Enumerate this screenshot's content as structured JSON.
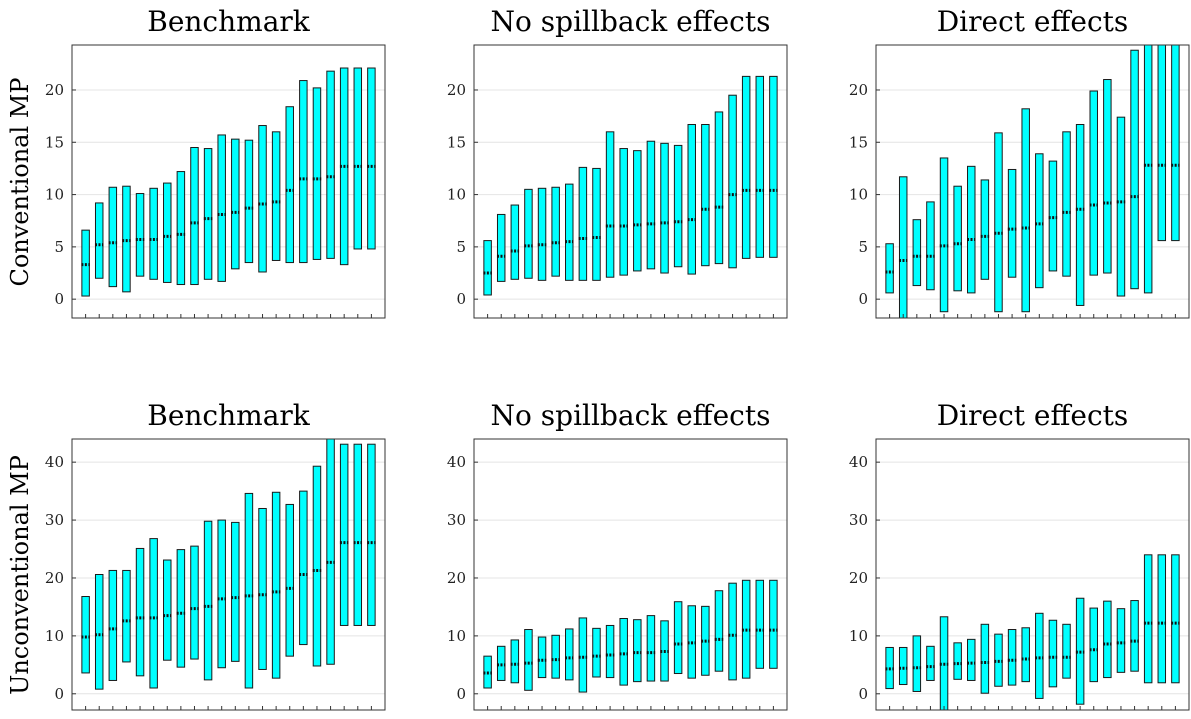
{
  "colors": {
    "bar_fill": "#00ffff",
    "bar_edge": "#1a1a1a",
    "median": "#111111",
    "grid": "#e4e4e4"
  },
  "row_labels": [
    "Conventional MP",
    "Unconventional MP"
  ],
  "chart_data": [
    {
      "type": "range-bar",
      "title": "Benchmark",
      "ylim": [
        -1.8,
        24.3
      ],
      "yticks": [
        0,
        5,
        10,
        15,
        20
      ],
      "grid": true,
      "x": [
        1,
        2,
        3,
        4,
        5,
        6,
        7,
        8,
        9,
        10,
        11,
        12,
        13,
        14,
        15,
        16,
        17,
        18,
        19,
        20,
        21,
        22
      ],
      "low": [
        0.3,
        2.0,
        1.2,
        0.7,
        2.2,
        1.9,
        1.6,
        1.4,
        1.4,
        1.9,
        1.7,
        2.9,
        3.5,
        2.6,
        3.7,
        3.5,
        3.5,
        3.8,
        3.9,
        3.3,
        4.8,
        4.8
      ],
      "high": [
        6.6,
        9.2,
        10.7,
        10.8,
        10.1,
        10.6,
        11.1,
        12.2,
        14.5,
        14.4,
        15.7,
        15.3,
        15.2,
        16.6,
        16.0,
        18.4,
        20.9,
        20.2,
        21.8,
        22.1,
        22.1,
        22.1
      ],
      "median": [
        3.3,
        5.2,
        5.4,
        5.6,
        5.7,
        5.7,
        6.0,
        6.2,
        7.3,
        7.7,
        8.1,
        8.3,
        8.7,
        9.1,
        9.3,
        10.4,
        11.5,
        11.5,
        11.7,
        12.7,
        12.7,
        12.7
      ]
    },
    {
      "type": "range-bar",
      "title": "No spillback effects",
      "ylim": [
        -1.8,
        24.3
      ],
      "yticks": [
        0,
        5,
        10,
        15,
        20
      ],
      "grid": true,
      "x": [
        1,
        2,
        3,
        4,
        5,
        6,
        7,
        8,
        9,
        10,
        11,
        12,
        13,
        14,
        15,
        16,
        17,
        18,
        19,
        20,
        21,
        22
      ],
      "low": [
        0.4,
        1.7,
        1.9,
        2.0,
        1.8,
        2.2,
        1.8,
        1.8,
        1.8,
        2.1,
        2.3,
        2.7,
        2.9,
        2.5,
        3.1,
        2.4,
        3.2,
        3.4,
        3.0,
        3.9,
        4.0,
        4.0
      ],
      "high": [
        5.6,
        8.1,
        9.0,
        10.5,
        10.6,
        10.7,
        11.0,
        12.6,
        12.5,
        16.0,
        14.4,
        14.2,
        15.1,
        14.9,
        14.7,
        16.7,
        16.7,
        17.9,
        19.5,
        21.3,
        21.3,
        21.3
      ],
      "median": [
        2.5,
        4.1,
        4.6,
        5.1,
        5.2,
        5.4,
        5.5,
        5.8,
        5.9,
        7.0,
        7.0,
        7.1,
        7.2,
        7.3,
        7.4,
        7.6,
        8.6,
        8.8,
        10.0,
        10.4,
        10.4,
        10.4
      ]
    },
    {
      "type": "range-bar",
      "title": "Direct effects",
      "ylim": [
        -1.8,
        24.3
      ],
      "yticks": [
        0,
        5,
        10,
        15,
        20
      ],
      "grid": true,
      "x": [
        1,
        2,
        3,
        4,
        5,
        6,
        7,
        8,
        9,
        10,
        11,
        12,
        13,
        14,
        15,
        16,
        17,
        18,
        19,
        20,
        21,
        22
      ],
      "low": [
        0.6,
        -2.0,
        1.3,
        0.9,
        -1.2,
        0.8,
        0.6,
        1.9,
        -1.2,
        2.1,
        -1.2,
        1.1,
        2.7,
        2.2,
        -0.6,
        2.3,
        2.5,
        0.3,
        1.0,
        0.6,
        5.6,
        5.6
      ],
      "high": [
        5.3,
        11.7,
        7.6,
        9.3,
        13.5,
        10.8,
        12.7,
        11.4,
        15.9,
        12.4,
        18.2,
        13.9,
        13.2,
        16.0,
        16.7,
        19.9,
        21.0,
        17.4,
        23.8,
        24.3,
        24.3,
        24.3
      ],
      "median": [
        2.6,
        3.7,
        4.1,
        4.1,
        5.1,
        5.3,
        5.7,
        6.0,
        6.3,
        6.7,
        6.8,
        7.2,
        7.8,
        8.3,
        8.6,
        9.0,
        9.2,
        9.3,
        9.8,
        12.8,
        12.8,
        12.8
      ]
    },
    {
      "type": "range-bar",
      "title": "Benchmark",
      "ylim": [
        -2.8,
        44.0
      ],
      "yticks": [
        0,
        10,
        20,
        30,
        40
      ],
      "grid": true,
      "x": [
        1,
        2,
        3,
        4,
        5,
        6,
        7,
        8,
        9,
        10,
        11,
        12,
        13,
        14,
        15,
        16,
        17,
        18,
        19,
        20,
        21,
        22
      ],
      "low": [
        3.6,
        0.8,
        2.3,
        5.5,
        3.1,
        1.0,
        5.8,
        4.6,
        6.0,
        2.4,
        4.5,
        5.6,
        1.0,
        4.2,
        2.7,
        6.5,
        8.5,
        4.8,
        5.1,
        11.8,
        11.8,
        11.8
      ],
      "high": [
        16.8,
        20.6,
        21.3,
        21.3,
        25.1,
        26.8,
        23.1,
        24.9,
        25.5,
        29.8,
        30.0,
        29.6,
        34.6,
        32.0,
        34.8,
        32.7,
        35.0,
        39.3,
        44.0,
        43.1,
        43.1,
        43.1
      ],
      "median": [
        9.8,
        10.2,
        11.2,
        12.6,
        13.1,
        13.1,
        13.5,
        13.9,
        14.7,
        15.1,
        16.4,
        16.6,
        16.9,
        17.1,
        17.6,
        18.2,
        20.6,
        21.3,
        22.7,
        26.1,
        26.1,
        26.1
      ]
    },
    {
      "type": "range-bar",
      "title": "No spillback effects",
      "ylim": [
        -2.8,
        44.0
      ],
      "yticks": [
        0,
        10,
        20,
        30,
        40
      ],
      "grid": true,
      "x": [
        1,
        2,
        3,
        4,
        5,
        6,
        7,
        8,
        9,
        10,
        11,
        12,
        13,
        14,
        15,
        16,
        17,
        18,
        19,
        20,
        21,
        22
      ],
      "low": [
        1.0,
        2.3,
        1.9,
        0.6,
        2.8,
        2.7,
        2.4,
        0.3,
        2.9,
        2.8,
        1.5,
        2.1,
        2.2,
        2.2,
        3.5,
        2.7,
        3.2,
        3.9,
        2.4,
        2.7,
        4.4,
        4.4
      ],
      "high": [
        6.5,
        8.2,
        9.3,
        11.1,
        9.8,
        10.1,
        11.2,
        13.1,
        11.3,
        11.8,
        13.0,
        12.8,
        13.5,
        12.6,
        15.9,
        15.2,
        15.1,
        17.8,
        19.1,
        19.6,
        19.6,
        19.6
      ],
      "median": [
        3.6,
        5.0,
        5.1,
        5.3,
        5.8,
        5.9,
        6.2,
        6.3,
        6.5,
        6.7,
        6.9,
        7.1,
        7.1,
        7.3,
        8.6,
        8.8,
        9.1,
        9.4,
        10.1,
        11.0,
        11.0,
        11.0
      ]
    },
    {
      "type": "range-bar",
      "title": "Direct effects",
      "ylim": [
        -2.8,
        44.0
      ],
      "yticks": [
        0,
        10,
        20,
        30,
        40
      ],
      "grid": true,
      "x": [
        1,
        2,
        3,
        4,
        5,
        6,
        7,
        8,
        9,
        10,
        11,
        12,
        13,
        14,
        15,
        16,
        17,
        18,
        19,
        20,
        21,
        22
      ],
      "low": [
        0.9,
        1.6,
        0.4,
        2.3,
        -2.8,
        2.5,
        2.3,
        0.1,
        1.3,
        1.5,
        2.1,
        -0.8,
        1.2,
        2.7,
        -1.8,
        2.1,
        2.8,
        3.7,
        3.9,
        1.9,
        1.9,
        1.9
      ],
      "high": [
        8.0,
        8.0,
        10.0,
        8.2,
        13.3,
        8.8,
        9.4,
        12.0,
        10.3,
        11.1,
        11.4,
        13.9,
        12.7,
        12.0,
        16.5,
        14.8,
        16.0,
        14.7,
        16.1,
        24.0,
        24.0,
        24.0
      ],
      "median": [
        4.3,
        4.4,
        4.5,
        4.7,
        5.1,
        5.2,
        5.3,
        5.4,
        5.6,
        5.8,
        6.0,
        6.2,
        6.3,
        6.3,
        7.2,
        7.6,
        8.6,
        8.8,
        9.1,
        12.2,
        12.2,
        12.2
      ]
    }
  ]
}
